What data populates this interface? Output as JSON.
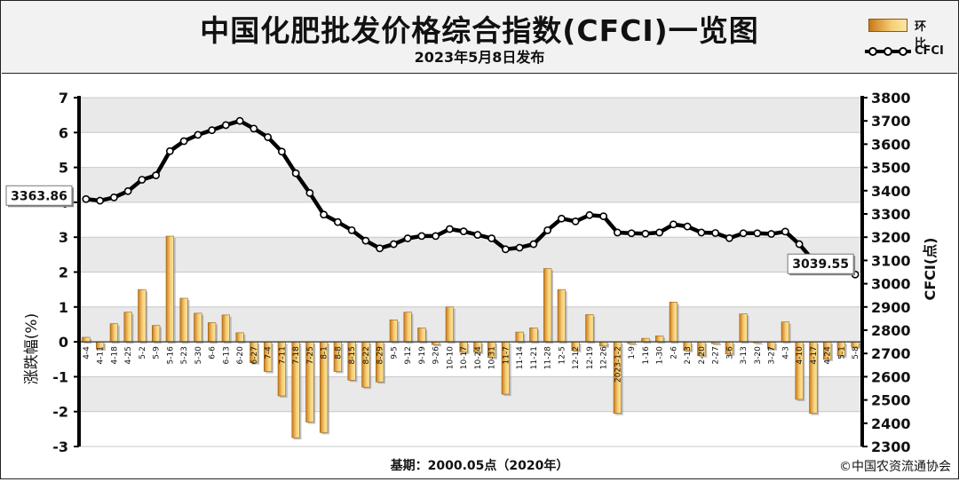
{
  "header": {
    "title": "中国化肥批发价格综合指数(CFCI)一览图",
    "subtitle": "2023年5月8日发布"
  },
  "legend": {
    "bar_label": "环比",
    "line_label": "CFCI"
  },
  "footer": {
    "base_note": "基期：2000.05点（2020年）",
    "credit": "©中国农资流通协会"
  },
  "colors": {
    "bar_dark": "#c8781a",
    "bar_light": "#f6cf76",
    "line": "#000000",
    "marker_fill": "#ffffff",
    "grid_band": "#e9e9e9"
  },
  "chart_data": {
    "type": "bar",
    "categories": [
      "4-4",
      "4-11",
      "4-18",
      "4-25",
      "5-2",
      "5-9",
      "5-16",
      "5-23",
      "5-30",
      "6-6",
      "6-13",
      "6-20",
      "6-27",
      "7-4",
      "7-11",
      "7-18",
      "7-25",
      "8-1",
      "8-8",
      "8-15",
      "8-22",
      "8-29",
      "9-5",
      "9-12",
      "9-19",
      "9-26",
      "10-10",
      "10-17",
      "10-24",
      "10-31",
      "11-7",
      "11-14",
      "11-21",
      "11-28",
      "12-5",
      "12-12",
      "12-19",
      "12-26",
      "2023-1-2",
      "1-9",
      "1-16",
      "1-30",
      "2-6",
      "2-13",
      "2-20",
      "2-27",
      "3-6",
      "3-13",
      "3-20",
      "3-27",
      "4-3",
      "4-10",
      "4-17",
      "4-24",
      "5-1",
      "5-8"
    ],
    "series": [
      {
        "name": "环比",
        "type": "bar",
        "axis": "left",
        "values": [
          0.13,
          -0.2,
          0.52,
          0.85,
          1.5,
          0.47,
          3.03,
          1.25,
          0.82,
          0.55,
          0.77,
          0.26,
          -0.6,
          -0.85,
          -1.55,
          -2.75,
          -2.3,
          -2.6,
          -0.85,
          -1.1,
          -1.3,
          -1.15,
          0.63,
          0.85,
          0.4,
          -0.08,
          1.0,
          -0.3,
          -0.3,
          -0.45,
          -1.5,
          0.28,
          0.4,
          2.1,
          1.5,
          -0.25,
          0.78,
          -0.12,
          -2.05,
          -0.05,
          0.1,
          0.17,
          1.14,
          -0.25,
          -0.4,
          -0.05,
          -0.35,
          0.8,
          -0.03,
          -0.2,
          0.57,
          -1.65,
          -2.05,
          -0.5,
          -0.4,
          -0.15
        ]
      },
      {
        "name": "CFCI",
        "type": "line",
        "axis": "right",
        "values": [
          3363.86,
          3357,
          3371,
          3398,
          3447,
          3466,
          3570,
          3613,
          3640,
          3660,
          3682,
          3700,
          3667,
          3630,
          3568,
          3475,
          3390,
          3297,
          3265,
          3230,
          3185,
          3152,
          3170,
          3195,
          3205,
          3205,
          3235,
          3225,
          3210,
          3195,
          3148,
          3155,
          3170,
          3230,
          3280,
          3268,
          3295,
          3290,
          3220,
          3217,
          3215,
          3220,
          3255,
          3246,
          3220,
          3218,
          3196,
          3217,
          3217,
          3214,
          3224,
          3170,
          3100,
          3085,
          3062,
          3039.55
        ]
      }
    ],
    "y_left": {
      "label": "涨跌幅(%)",
      "min": -3,
      "max": 7,
      "ticks": [
        -3,
        -2,
        -1,
        0,
        1,
        2,
        3,
        4,
        5,
        6,
        7
      ]
    },
    "y_right": {
      "label": "CFCI(点)",
      "min": 2300,
      "max": 3800,
      "ticks": [
        2300,
        2400,
        2500,
        2600,
        2700,
        2800,
        2900,
        3000,
        3100,
        3200,
        3300,
        3400,
        3500,
        3600,
        3700,
        3800
      ]
    },
    "callouts": [
      {
        "point_index": 0,
        "text": "3363.86"
      },
      {
        "point_index": 55,
        "text": "3039.55"
      }
    ],
    "grid": true,
    "legend_position": "top-right"
  }
}
